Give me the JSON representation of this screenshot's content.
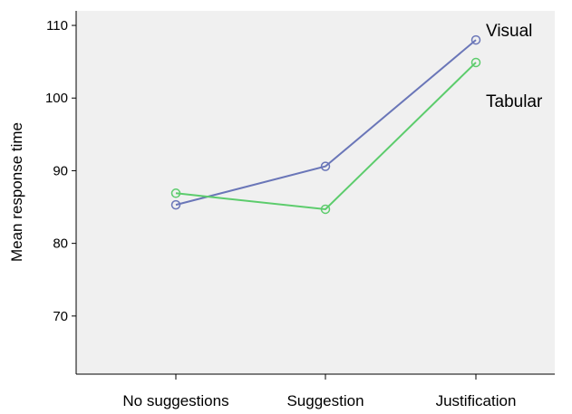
{
  "chart_data": {
    "type": "line",
    "categories": [
      "No suggestions",
      "Suggestion",
      "Justification"
    ],
    "series": [
      {
        "name": "Visual",
        "values": [
          85.3,
          90.6,
          108.0
        ],
        "color": "#6a76b8"
      },
      {
        "name": "Tabular",
        "values": [
          86.9,
          84.7,
          104.9
        ],
        "color": "#5ccc6c"
      }
    ],
    "title": "",
    "xlabel": "",
    "ylabel": "Mean response time",
    "ylim": [
      62,
      112
    ],
    "yticks": [
      70,
      80,
      90,
      100,
      110
    ],
    "plot_background": "#f0f0f0",
    "grid": false,
    "legend": "labels placed at line ends"
  }
}
